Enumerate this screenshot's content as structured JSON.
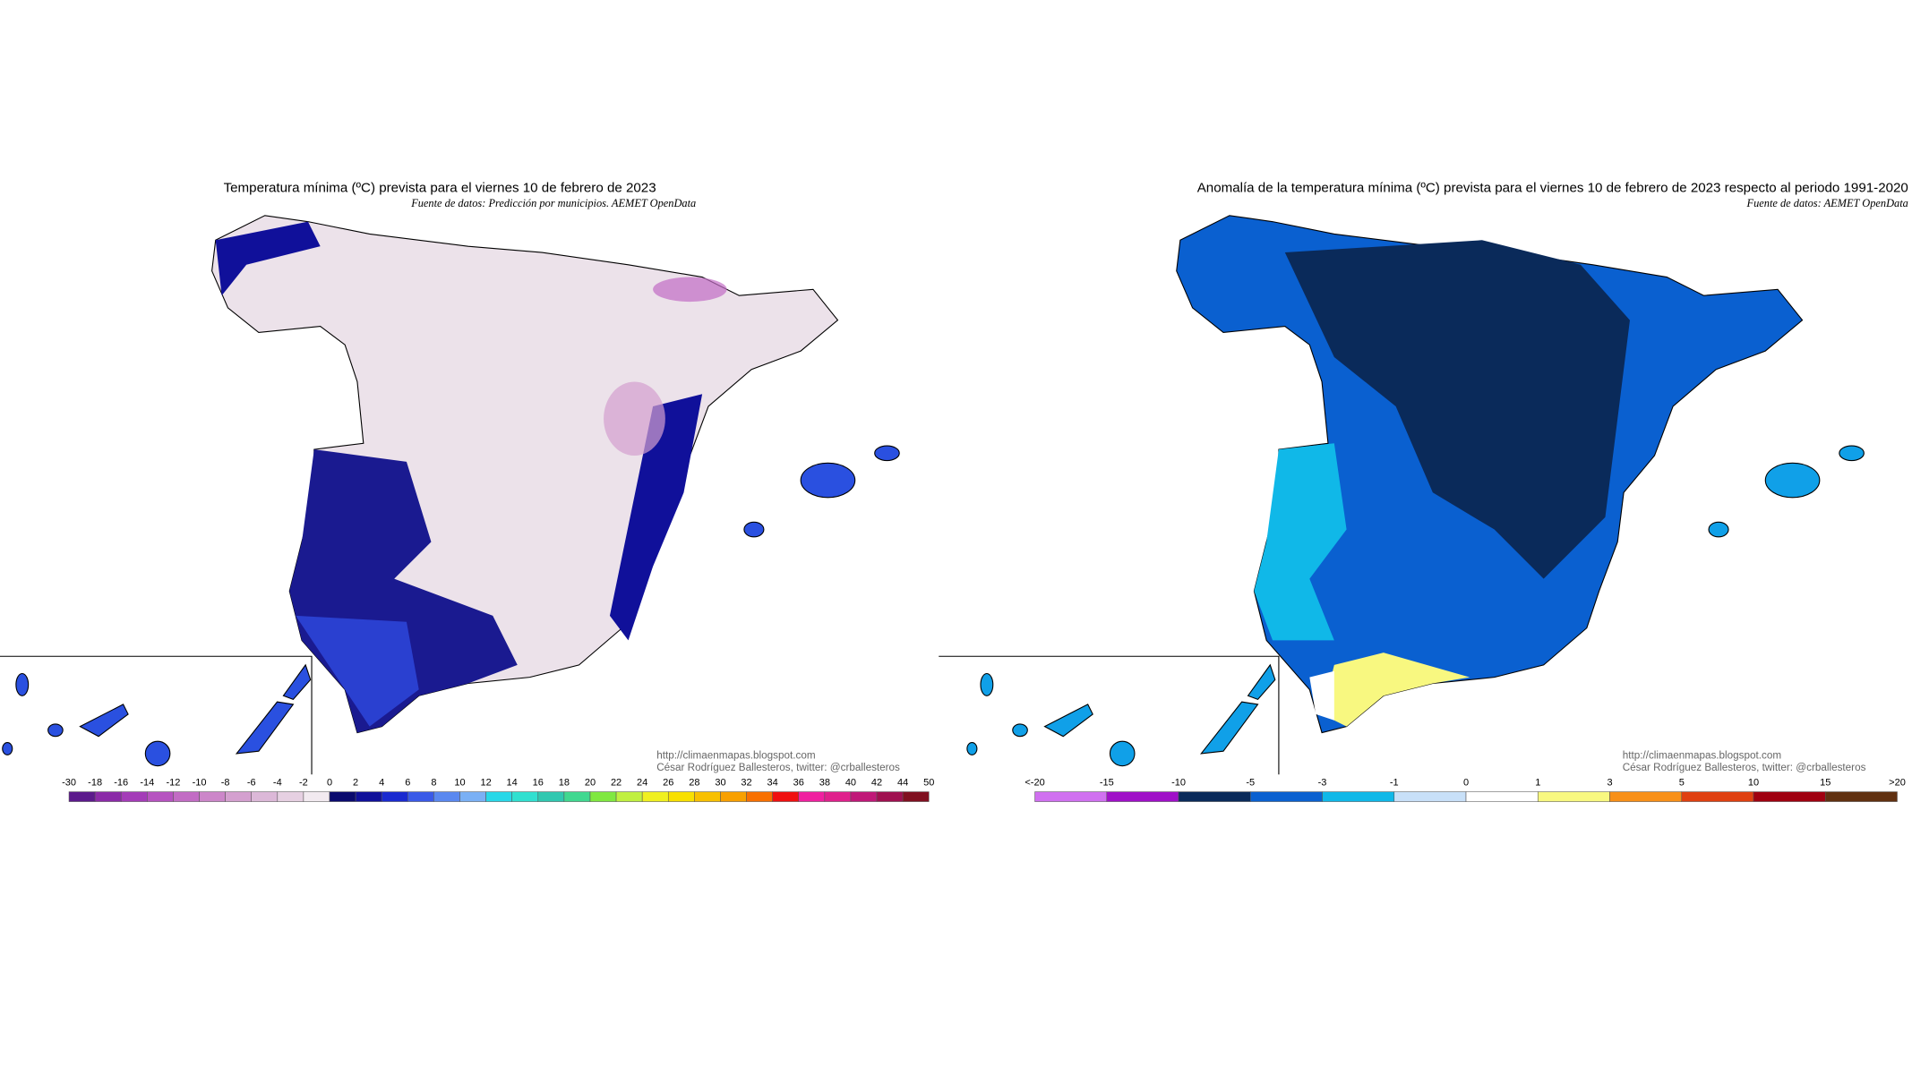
{
  "panels": [
    {
      "title": "Temperatura mínima (ºC) prevista para el viernes 10 de febrero de 2023",
      "source": "Fuente de datos: Predicción por municipios. AEMET OpenData",
      "credit_url": "http://climaenmapas.blogspot.com",
      "credit_author": "César Rodríguez Ballesteros, twitter: @crballesteros",
      "legend": {
        "labels": [
          "-30",
          "-18",
          "-16",
          "-14",
          "-12",
          "-10",
          "-8",
          "-6",
          "-4",
          "-2",
          "0",
          "2",
          "4",
          "6",
          "8",
          "10",
          "12",
          "14",
          "16",
          "18",
          "20",
          "22",
          "24",
          "26",
          "28",
          "30",
          "32",
          "34",
          "36",
          "38",
          "40",
          "42",
          "44",
          "50"
        ],
        "colors": [
          "#5c1a8c",
          "#8b2aa8",
          "#a43cb8",
          "#b653c0",
          "#c26cc4",
          "#cc86c9",
          "#d4a0cf",
          "#dcb8d8",
          "#e6d0e2",
          "#f2eaf0",
          "#0a0a6e",
          "#10109a",
          "#1a2ad0",
          "#3a5ae8",
          "#5a88f0",
          "#7ab0f5",
          "#28d8e8",
          "#30e0d0",
          "#30c8b0",
          "#40d890",
          "#80e840",
          "#c0f040",
          "#f0f020",
          "#f8e000",
          "#f8c000",
          "#f8a000",
          "#f87000",
          "#f01010",
          "#f020a0",
          "#e0208c",
          "#c01878",
          "#a01050",
          "#801020"
        ]
      }
    },
    {
      "title": "Anomalía de la temperatura mínima (ºC) prevista para el viernes 10 de febrero de 2023 respecto al periodo 1991-2020",
      "source": "Fuente de datos: AEMET OpenData",
      "credit_url": "http://climaenmapas.blogspot.com",
      "credit_author": "César Rodríguez Ballesteros, twitter: @crballesteros",
      "legend": {
        "labels": [
          "<-20",
          "-15",
          "-10",
          "-5",
          "-3",
          "-1",
          "0",
          "1",
          "3",
          "5",
          "10",
          "15",
          ">20"
        ],
        "colors": [
          "#d070f0",
          "#a010c8",
          "#0a2a5a",
          "#0a60d0",
          "#10b8e8",
          "#c8e0f8",
          "#ffffff",
          "#f8f880",
          "#f89018",
          "#e04010",
          "#a00010",
          "#603010"
        ]
      }
    }
  ]
}
